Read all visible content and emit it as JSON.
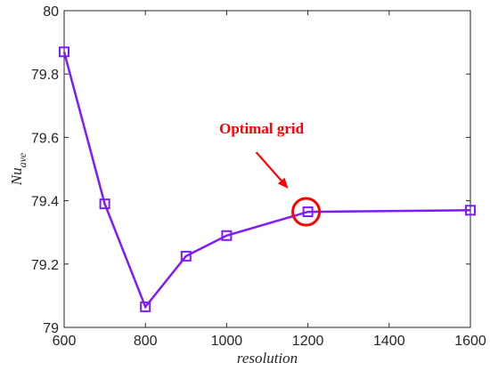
{
  "chart_data": {
    "type": "line",
    "xlabel": "resolution",
    "ylabel_base": "Nu",
    "ylabel_sub": "ave",
    "xlim": [
      600,
      1600
    ],
    "ylim": [
      79,
      80
    ],
    "xticks": [
      600,
      800,
      1000,
      1200,
      1400,
      1600
    ],
    "yticks": [
      79,
      79.2,
      79.4,
      79.6,
      79.8,
      80
    ],
    "grid": false,
    "series": [
      {
        "color": "#7f1aff",
        "marker": "square",
        "x": [
          600,
          700,
          800,
          900,
          1000,
          1200,
          1600
        ],
        "y": [
          79.87,
          79.39,
          79.065,
          79.225,
          79.29,
          79.365,
          79.37
        ]
      }
    ],
    "annotations": [
      {
        "text": "Optimal grid",
        "color": "#ff0000",
        "target_x": 1200,
        "target_y": 79.365,
        "marker": "circle"
      }
    ]
  }
}
